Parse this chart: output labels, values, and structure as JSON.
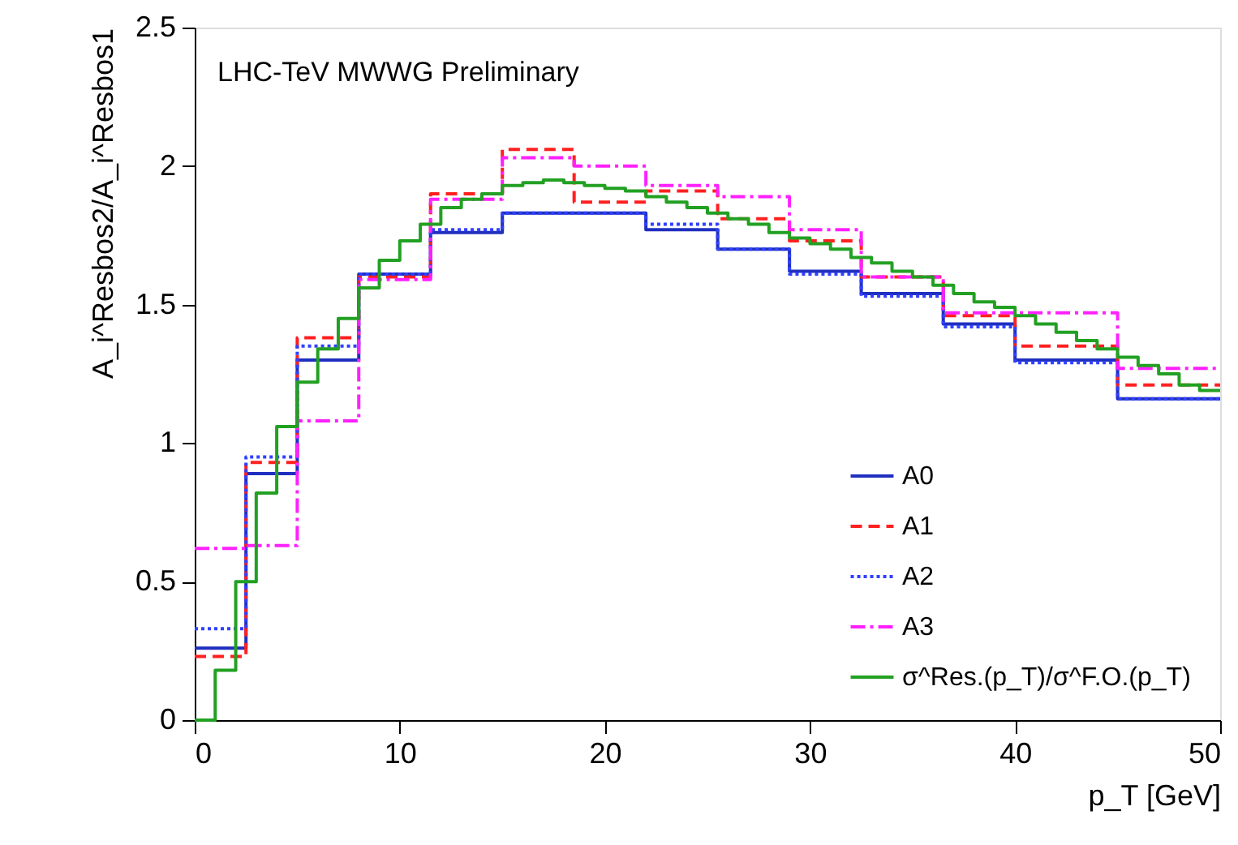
{
  "chart_data": {
    "type": "step",
    "xlabel": "p_T [GeV]",
    "ylabel": "A_i^Resbos2/A_i^Resbos1",
    "xlim": [
      0,
      50
    ],
    "xticks": [
      0,
      10,
      20,
      30,
      40,
      50
    ],
    "ylim": [
      0,
      2.5
    ],
    "yticks": [
      0,
      0.5,
      1,
      1.5,
      2,
      2.5
    ],
    "grid": false,
    "legend": "bottom right",
    "annotations": [
      "LHC-TeV MWWG Preliminary"
    ],
    "series": [
      {
        "name": "A0",
        "color": "#1f2fbf",
        "line_style": "solid",
        "x": [
          0,
          2.5,
          5,
          8,
          11.5,
          15,
          18.5,
          22,
          25.5,
          29,
          32.5,
          36.5,
          40,
          45,
          50
        ],
        "values": [
          0.26,
          0.89,
          1.3,
          1.61,
          1.76,
          1.83,
          1.83,
          1.77,
          1.7,
          1.62,
          1.54,
          1.43,
          1.3,
          1.16,
          1.16
        ]
      },
      {
        "name": "A1",
        "color": "#ff2020",
        "line_style": "dashed",
        "x": [
          0,
          2.5,
          5,
          8,
          11.5,
          15,
          18.5,
          22,
          25.5,
          29,
          32.5,
          36.5,
          40,
          45,
          50
        ],
        "values": [
          0.23,
          0.93,
          1.38,
          1.6,
          1.9,
          2.06,
          1.87,
          1.91,
          1.81,
          1.73,
          1.6,
          1.46,
          1.35,
          1.21,
          1.21
        ]
      },
      {
        "name": "A2",
        "color": "#3040ff",
        "line_style": "dotted",
        "x": [
          0,
          2.5,
          5,
          8,
          11.5,
          15,
          18.5,
          22,
          25.5,
          29,
          32.5,
          36.5,
          40,
          45,
          50
        ],
        "values": [
          0.33,
          0.95,
          1.35,
          1.61,
          1.77,
          1.83,
          1.83,
          1.79,
          1.7,
          1.61,
          1.53,
          1.42,
          1.29,
          1.16,
          1.16
        ]
      },
      {
        "name": "A3",
        "color": "#ff20ff",
        "line_style": "dashdot",
        "x": [
          0,
          2.5,
          5,
          8,
          11.5,
          15,
          18.5,
          22,
          25.5,
          29,
          32.5,
          36.5,
          40,
          45,
          50
        ],
        "values": [
          0.62,
          0.63,
          1.08,
          1.59,
          1.88,
          2.03,
          2.0,
          1.93,
          1.89,
          1.77,
          1.6,
          1.47,
          1.47,
          1.27,
          1.27
        ]
      },
      {
        "name": "σ^Res.(p_T)/σ^F.O.(p_T)",
        "color": "#22a022",
        "line_style": "solid",
        "x": [
          0,
          1,
          2,
          3,
          4,
          5,
          6,
          7,
          8,
          9,
          10,
          11,
          12,
          13,
          14,
          15,
          16,
          17,
          18,
          19,
          20,
          21,
          22,
          23,
          24,
          25,
          26,
          27,
          28,
          29,
          30,
          31,
          32,
          33,
          34,
          35,
          36,
          37,
          38,
          39,
          40,
          41,
          42,
          43,
          44,
          45,
          46,
          47,
          48,
          49,
          50
        ],
        "values": [
          0,
          0.18,
          0.5,
          0.82,
          1.06,
          1.22,
          1.34,
          1.45,
          1.56,
          1.66,
          1.73,
          1.79,
          1.85,
          1.88,
          1.9,
          1.93,
          1.94,
          1.95,
          1.94,
          1.93,
          1.92,
          1.91,
          1.89,
          1.87,
          1.85,
          1.83,
          1.81,
          1.79,
          1.76,
          1.74,
          1.72,
          1.7,
          1.67,
          1.65,
          1.62,
          1.6,
          1.57,
          1.54,
          1.51,
          1.49,
          1.46,
          1.43,
          1.4,
          1.37,
          1.34,
          1.31,
          1.28,
          1.25,
          1.21,
          1.19,
          1.19
        ]
      }
    ]
  }
}
